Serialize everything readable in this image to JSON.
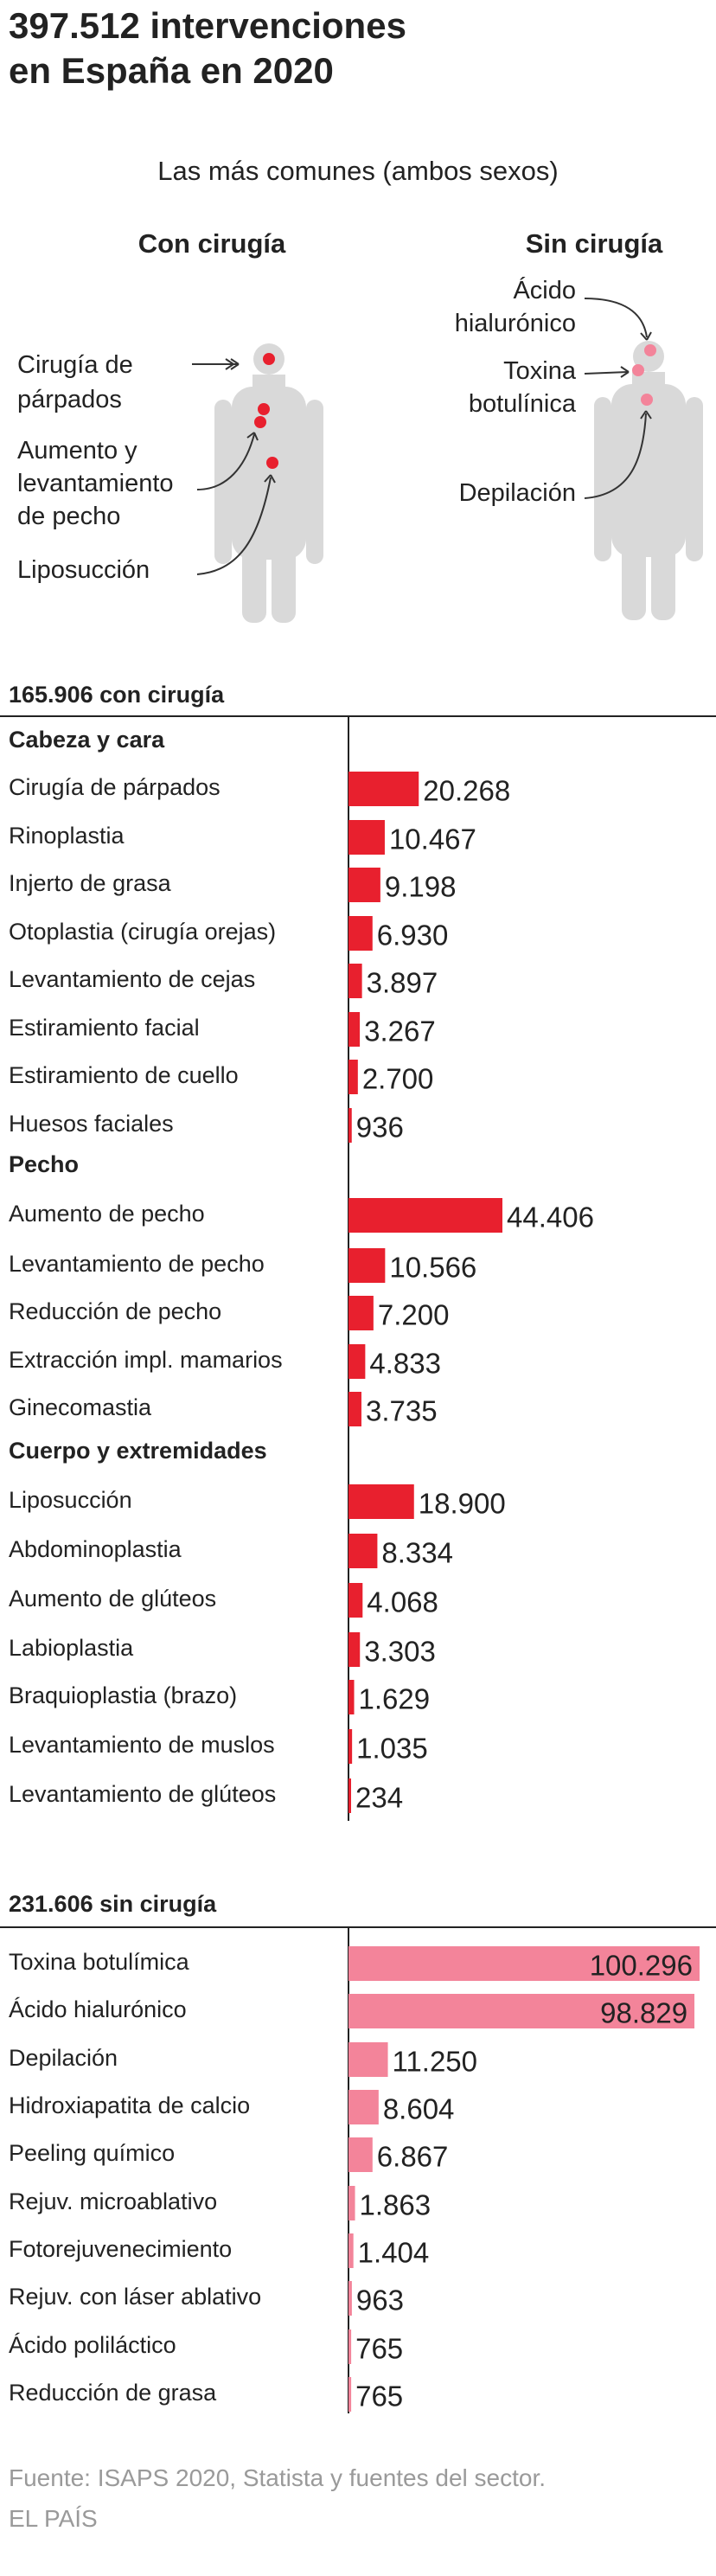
{
  "header": {
    "title_line1": "397.512 intervenciones",
    "title_line2": "en España en 2020",
    "subtitle": "Las más comunes (ambos sexos)"
  },
  "illustration": {
    "left": {
      "heading": "Con cirugía",
      "labels": [
        [
          "Cirugía de",
          "párpados"
        ],
        [
          "Aumento y",
          "levantamiento",
          "de pecho"
        ],
        [
          "Liposucción"
        ]
      ],
      "marker_color": "#e8202e"
    },
    "right": {
      "heading": "Sin cirugía",
      "labels": [
        [
          "Ácido",
          "hialurónico"
        ],
        [
          "Toxina",
          "botulínica"
        ],
        [
          "Depilación"
        ]
      ],
      "marker_color": "#f3849a"
    },
    "body_color": "#d9d9d9"
  },
  "chart_data": [
    {
      "type": "bar",
      "title": "165.906 con cirugía",
      "color": "#e8202e",
      "groups": [
        {
          "name": "Cabeza y cara",
          "categories": [
            "Cirugía de párpados",
            "Rinoplastia",
            "Injerto de grasa",
            "Otoplastia (cirugía orejas)",
            "Levantamiento de cejas",
            "Estiramiento  facial",
            "Estiramiento de cuello",
            "Huesos faciales"
          ],
          "values": [
            20268,
            10467,
            9198,
            6930,
            3897,
            3267,
            2700,
            936
          ],
          "labels": [
            "20.268",
            "10.467",
            "9.198",
            "6.930",
            "3.897",
            "3.267",
            "2.700",
            "936"
          ]
        },
        {
          "name": "Pecho",
          "categories": [
            "Aumento de pecho",
            "Levantamiento de pecho",
            "Reducción de pecho",
            "Extracción impl. mamarios",
            "Ginecomastia"
          ],
          "values": [
            44406,
            10566,
            7200,
            4833,
            3735
          ],
          "labels": [
            "44.406",
            "10.566",
            "7.200",
            "4.833",
            "3.735"
          ]
        },
        {
          "name": "Cuerpo y extremidades",
          "categories": [
            "Liposucción",
            "Abdominoplastia",
            "Aumento de glúteos",
            "Labioplastia",
            "Braquioplastia (brazo)",
            "Levantamiento de muslos",
            "Levantamiento de glúteos"
          ],
          "values": [
            18900,
            8334,
            4068,
            3303,
            1629,
            1035,
            234
          ],
          "labels": [
            "18.900",
            "8.334",
            "4.068",
            "3.303",
            "1.629",
            "1.035",
            "234"
          ]
        }
      ]
    },
    {
      "type": "bar",
      "title": "231.606 sin cirugía",
      "color": "#f3849a",
      "groups": [
        {
          "name": "",
          "categories": [
            "Toxina botulímica",
            "Ácido hialurónico",
            "Depilación",
            "Hidroxiapatita de calcio",
            "Peeling químico",
            "Rejuv. microablativo",
            "Fotorejuvenecimiento",
            "Rejuv. con láser ablativo",
            "Ácido poliláctico",
            "Reducción de grasa"
          ],
          "values": [
            100296,
            98829,
            11250,
            8604,
            6867,
            1863,
            1404,
            963,
            765,
            765
          ],
          "labels": [
            "100.296",
            "98.829",
            "11.250",
            "8.604",
            "6.867",
            "1.863",
            "1.404",
            "963",
            "765",
            "765"
          ]
        }
      ]
    }
  ],
  "footer": {
    "source": "Fuente: ISAPS 2020, Statista y fuentes del sector.",
    "brand": "EL PAÍS"
  }
}
